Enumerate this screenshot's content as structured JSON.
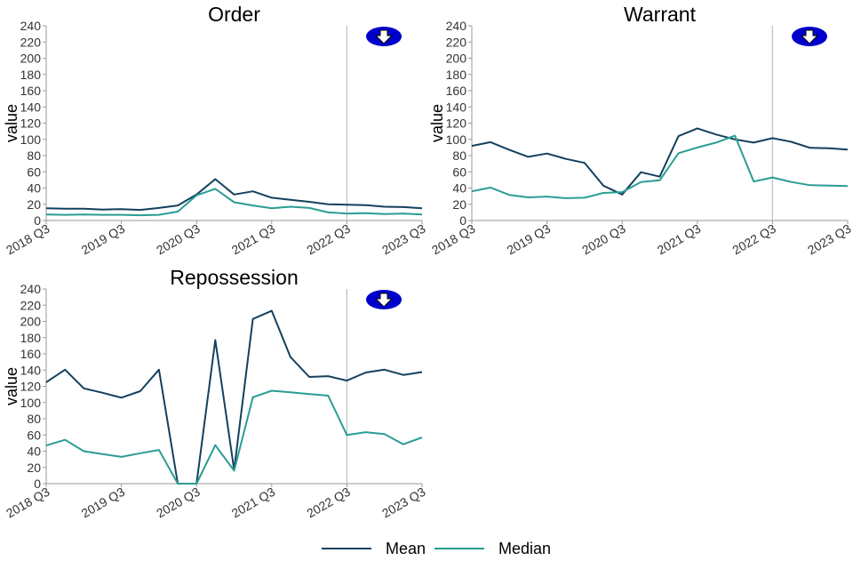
{
  "chart_data": [
    {
      "type": "line",
      "title": "Order",
      "ylabel": "value",
      "xlabel": "",
      "ylim": [
        0,
        240
      ],
      "yticks": [
        0,
        20,
        40,
        60,
        80,
        100,
        120,
        140,
        160,
        180,
        200,
        220,
        240
      ],
      "xticks": [
        "2018 Q3",
        "2019 Q3",
        "2020 Q3",
        "2021 Q3",
        "2022 Q3",
        "2023 Q3"
      ],
      "reference_line_x": "2022 Q3",
      "icon": "down-arrow-icon",
      "x": [
        "2018 Q3",
        "2018 Q4",
        "2019 Q1",
        "2019 Q2",
        "2019 Q3",
        "2019 Q4",
        "2020 Q1",
        "2020 Q2",
        "2020 Q3",
        "2020 Q4",
        "2021 Q1",
        "2021 Q2",
        "2021 Q3",
        "2021 Q4",
        "2022 Q1",
        "2022 Q2",
        "2022 Q3",
        "2022 Q4",
        "2023 Q1",
        "2023 Q2",
        "2023 Q3"
      ],
      "series": [
        {
          "name": "Mean",
          "color": "#14405e",
          "values": [
            15,
            14.5,
            14.5,
            13.5,
            14,
            13,
            15.5,
            18.5,
            32,
            51,
            32,
            36,
            28,
            25.5,
            23,
            20,
            19.5,
            19,
            17,
            16.5,
            15
          ]
        },
        {
          "name": "Median",
          "color": "#2a9d94",
          "values": [
            7.5,
            7,
            7.5,
            7,
            7,
            6.5,
            7,
            11,
            31,
            39,
            22.5,
            18.5,
            15,
            17,
            15.5,
            10,
            8.5,
            9,
            8,
            8.5,
            7.5
          ]
        }
      ]
    },
    {
      "type": "line",
      "title": "Warrant",
      "ylabel": "value",
      "xlabel": "",
      "ylim": [
        0,
        240
      ],
      "yticks": [
        0,
        20,
        40,
        60,
        80,
        100,
        120,
        140,
        160,
        180,
        200,
        220,
        240
      ],
      "xticks": [
        "2018 Q3",
        "2019 Q3",
        "2020 Q3",
        "2021 Q3",
        "2022 Q3",
        "2023 Q3"
      ],
      "reference_line_x": "2022 Q3",
      "icon": "down-arrow-icon",
      "x": [
        "2018 Q3",
        "2018 Q4",
        "2019 Q1",
        "2019 Q2",
        "2019 Q3",
        "2019 Q4",
        "2020 Q1",
        "2020 Q2",
        "2020 Q3",
        "2020 Q4",
        "2021 Q1",
        "2021 Q2",
        "2021 Q3",
        "2021 Q4",
        "2022 Q1",
        "2022 Q2",
        "2022 Q3",
        "2022 Q4",
        "2023 Q1",
        "2023 Q2",
        "2023 Q3"
      ],
      "series": [
        {
          "name": "Mean",
          "color": "#14405e",
          "values": [
            92,
            96.5,
            87,
            78.5,
            82.5,
            76,
            71,
            43,
            32,
            59.5,
            54,
            104,
            113.5,
            106,
            100,
            96,
            101.5,
            97,
            89.5,
            89,
            87.5
          ]
        },
        {
          "name": "Median",
          "color": "#2a9d94",
          "values": [
            36,
            40.5,
            31.5,
            28.5,
            29.5,
            27.5,
            28,
            34,
            35,
            47.5,
            49.5,
            83,
            90,
            96,
            104.5,
            48,
            53,
            47.5,
            43.5,
            43,
            42.5
          ]
        }
      ]
    },
    {
      "type": "line",
      "title": "Repossession",
      "ylabel": "value",
      "xlabel": "",
      "ylim": [
        0,
        240
      ],
      "yticks": [
        0,
        20,
        40,
        60,
        80,
        100,
        120,
        140,
        160,
        180,
        200,
        220,
        240
      ],
      "xticks": [
        "2018 Q3",
        "2019 Q3",
        "2020 Q3",
        "2021 Q3",
        "2022 Q3",
        "2023 Q3"
      ],
      "reference_line_x": "2022 Q3",
      "icon": "down-arrow-icon",
      "x": [
        "2018 Q3",
        "2018 Q4",
        "2019 Q1",
        "2019 Q2",
        "2019 Q3",
        "2019 Q4",
        "2020 Q1",
        "2020 Q2",
        "2020 Q3",
        "2020 Q4",
        "2021 Q1",
        "2021 Q2",
        "2021 Q3",
        "2021 Q4",
        "2022 Q1",
        "2022 Q2",
        "2022 Q3",
        "2022 Q4",
        "2023 Q1",
        "2023 Q2",
        "2023 Q3"
      ],
      "series": [
        {
          "name": "Mean",
          "color": "#14405e",
          "values": [
            125,
            140.5,
            117.5,
            112,
            106,
            114,
            140.5,
            0,
            0,
            177,
            17,
            203,
            213,
            156,
            131.5,
            132.5,
            127,
            137,
            140.5,
            134,
            137.5
          ]
        },
        {
          "name": "Median",
          "color": "#2a9d94",
          "values": [
            47,
            54,
            40,
            36.5,
            33,
            37.5,
            41.5,
            0,
            0,
            47.5,
            16,
            106.5,
            114.5,
            112.5,
            110.5,
            108.5,
            60,
            63.5,
            61,
            48.5,
            57
          ]
        }
      ]
    }
  ],
  "legend": {
    "position": "bottom",
    "items": [
      {
        "label": "Mean",
        "color": "#14405e"
      },
      {
        "label": "Median",
        "color": "#2a9d94"
      }
    ]
  },
  "colors": {
    "reference_line": "#c8c8c8",
    "axis": "#999999",
    "icon_fill": "#0000cc"
  }
}
